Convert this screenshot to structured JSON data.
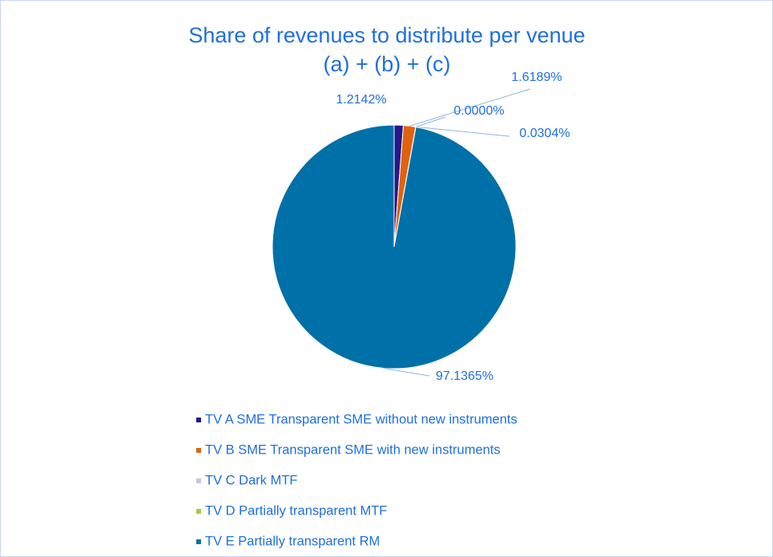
{
  "chart_data": {
    "type": "pie",
    "title": [
      "Share of revenues to distribute per venue",
      "(a) + (b) + (c)"
    ],
    "categories": [
      "TV A SME Transparent SME without new instruments",
      "TV B SME Transparent SME with new instruments",
      "TV C Dark MTF",
      "TV D Partially transparent MTF",
      "TV E Partially transparent RM"
    ],
    "values": [
      1.2142,
      1.6189,
      0.0,
      0.0304,
      97.1365
    ],
    "value_labels": [
      "1.2142%",
      "1.6189%",
      "0.0000%",
      "0.0304%",
      "97.1365%"
    ],
    "colors": [
      "#22198a",
      "#e0620f",
      "#c5c5de",
      "#a8c84a",
      "#0070a8"
    ],
    "legend": "bottom"
  }
}
